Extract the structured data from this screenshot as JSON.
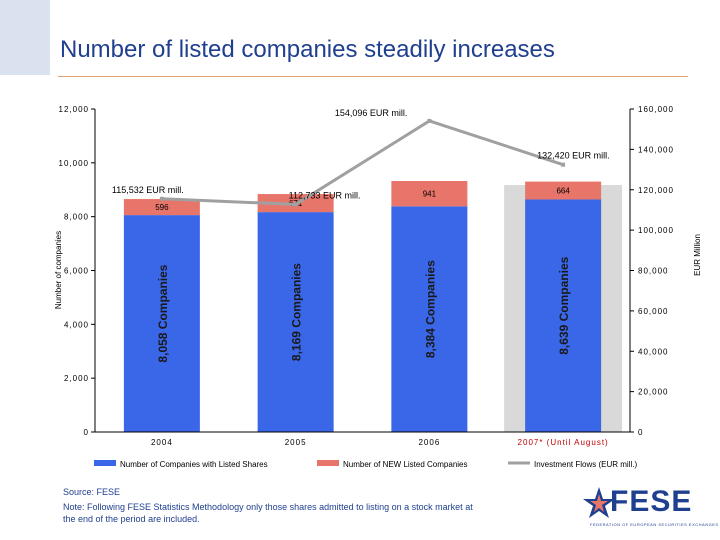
{
  "title": "Number of listed companies steadily increases",
  "source": "Source: FESE",
  "note": "Note: Following FESE Statistics Methodology only those shares admitted to listing on a stock market at the end of the period are included.",
  "logo": {
    "text": "FESE",
    "subtext": "FEDERATION OF EUROPEAN SECURITIES EXCHANGES"
  },
  "colors": {
    "title": "#1f3f8f",
    "bars": "#3a66e8",
    "new_listed": "#e8756a",
    "investment": "#a0a0a0",
    "highlight": "#d9d9d9"
  },
  "chart_data": {
    "type": "bar",
    "categories": [
      "2004",
      "2005",
      "2006",
      "2007* (Until August)"
    ],
    "left_axis": {
      "label": "Number of companies",
      "ylim": [
        0,
        12000
      ],
      "ticks": [
        "0",
        "2,000",
        "4,000",
        "6,000",
        "8,000",
        "10,000",
        "12,000"
      ]
    },
    "right_axis": {
      "label": "EUR Million",
      "ylim": [
        0,
        160000
      ],
      "ticks": [
        "0",
        "20,000",
        "40,000",
        "60,000",
        "80,000",
        "100,000",
        "120,000",
        "140,000",
        "160,000"
      ]
    },
    "series": [
      {
        "name": "Number of Companies with Listed Shares",
        "type": "bar",
        "values": [
          8058,
          8169,
          8384,
          8639
        ],
        "labels": [
          "8,058 Companies",
          "8,169 Companies",
          "8,384 Companies",
          "8,639 Companies"
        ]
      },
      {
        "name": "Number of NEW Listed Companies",
        "type": "bar",
        "values": [
          596,
          671,
          941,
          664
        ],
        "labels": [
          "596",
          "671",
          "941",
          "664"
        ]
      },
      {
        "name": "Investment Flows (EUR mill.)",
        "type": "line",
        "axis": "right",
        "values": [
          115532,
          112733,
          154096,
          132420
        ],
        "labels": [
          "115,532 EUR mill.",
          "112,733  EUR mill.",
          "154,096   EUR mill.",
          "132,420 EUR mill."
        ]
      }
    ],
    "highlighted_category": "2007* (Until August)"
  }
}
